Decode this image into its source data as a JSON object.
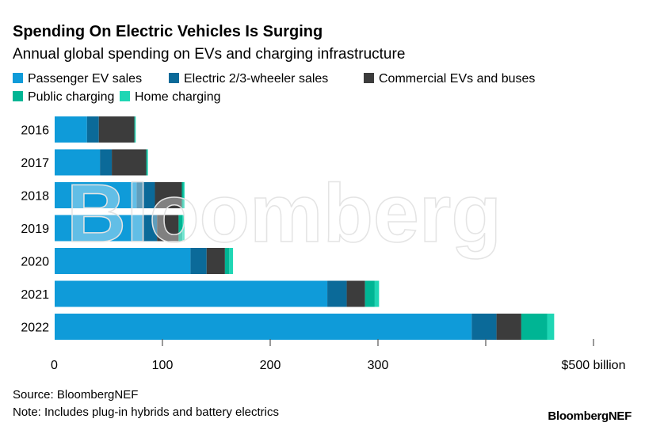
{
  "chart_data": {
    "type": "bar",
    "orientation": "horizontal",
    "stacked": true,
    "title": "Spending On Electric Vehicles Is Surging",
    "subtitle": "Annual global spending on EVs and charging infrastructure",
    "categories": [
      "2016",
      "2017",
      "2018",
      "2019",
      "2020",
      "2021",
      "2022"
    ],
    "series": [
      {
        "name": "Passenger EV sales",
        "color": "#0f9bd9",
        "values": [
          30,
          42,
          76,
          81,
          126,
          253,
          387
        ]
      },
      {
        "name": "Electric 2/3-wheeler sales",
        "color": "#0b6a99",
        "values": [
          11,
          11,
          17,
          14,
          15,
          18,
          23
        ]
      },
      {
        "name": "Commercial EVs and buses",
        "color": "#3c3c3c",
        "values": [
          33,
          32,
          25,
          20,
          17,
          17,
          23
        ]
      },
      {
        "name": "Public charging",
        "color": "#00b594",
        "values": [
          0.7,
          1,
          1.5,
          3.5,
          4,
          9,
          24
        ]
      },
      {
        "name": "Home charging",
        "color": "#1fd6b4",
        "values": [
          0.5,
          0.5,
          1,
          2,
          3.5,
          4,
          6.5
        ]
      }
    ],
    "xlim": [
      0,
      500
    ],
    "xticks": [
      0,
      100,
      200,
      300,
      400,
      500
    ],
    "xtick_labels": [
      "0",
      "100",
      "200",
      "300",
      "$500 billion"
    ],
    "xtick_labels_at": [
      0,
      100,
      200,
      300,
      500
    ],
    "legend_placement": "top",
    "grid": false
  },
  "footer": {
    "source": "Source: BloombergNEF",
    "note": "Note: Includes plug-in hybrids and battery electrics",
    "logo": "BloombergNEF"
  },
  "watermark": "Bloomberg"
}
